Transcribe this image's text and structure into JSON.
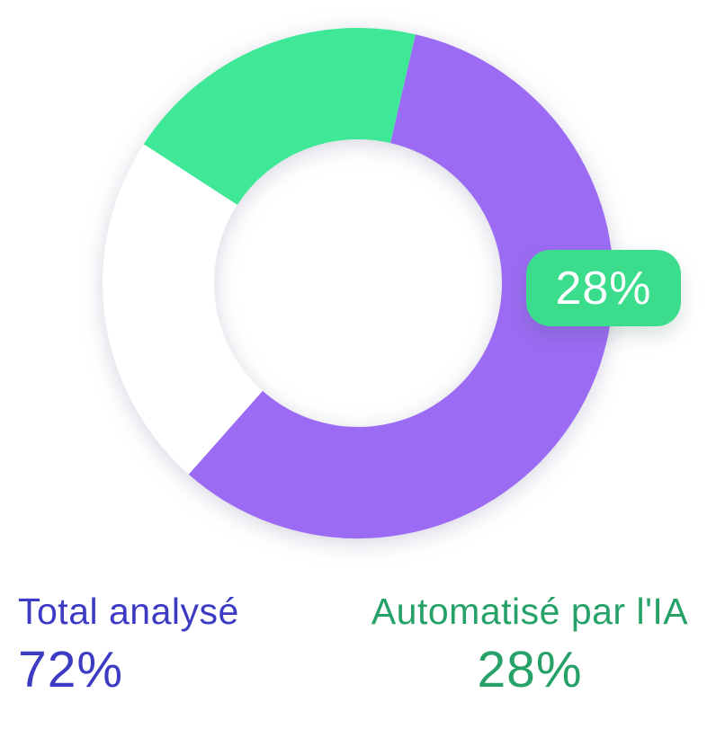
{
  "background": "#ffffff",
  "chart_data": {
    "type": "pie",
    "variant": "donut-gauge-with-gap",
    "title": "",
    "legend_position": "bottom",
    "series": [
      {
        "name": "Total analysé",
        "value": 72,
        "color": "#9C6BF3"
      },
      {
        "name": "Automatisé par l'IA",
        "value": 28,
        "color": "#3EE896"
      }
    ],
    "geometry": {
      "cx": 398,
      "cy": 315,
      "outer_radius": 284,
      "inner_radius": 160,
      "track_color": "#ffffff",
      "arcs": [
        {
          "series": 0,
          "start_deg": 13,
          "end_deg": 221.5
        },
        {
          "series": 1,
          "start_deg": -57,
          "end_deg": 13
        }
      ],
      "gap_deg": 84.5
    }
  },
  "badge": {
    "label": "28%",
    "bg": "#3BDC8C",
    "text_color": "#ffffff"
  },
  "stats": {
    "left": {
      "label": "Total analysé",
      "value": "72%",
      "color": "#3D3BC4"
    },
    "right": {
      "label": "Automatisé par l'IA",
      "value": "28%",
      "color": "#26A269"
    }
  }
}
